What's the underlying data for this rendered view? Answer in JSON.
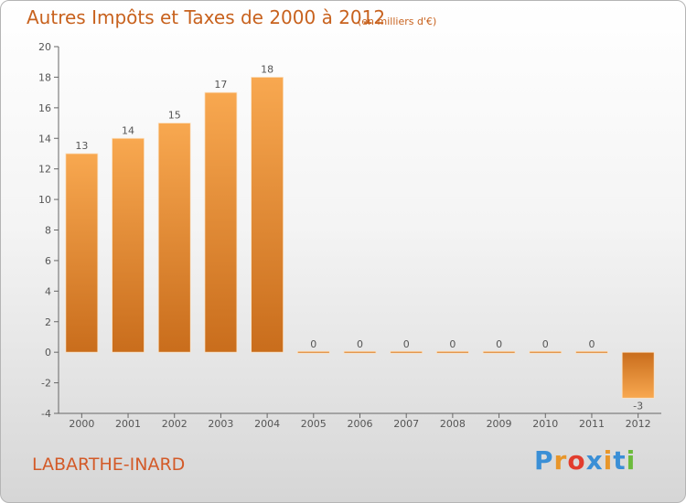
{
  "header": {
    "title": "Autres Impôts et Taxes de 2000 à 2012",
    "subtitle": "(en milliers d'€)"
  },
  "commune": "LABARTHE-INARD",
  "logo": {
    "letters": [
      "P",
      "r",
      "o",
      "x",
      "i",
      "t",
      "i"
    ],
    "colors": [
      "#3a8fd6",
      "#e8962a",
      "#e23d2e",
      "#3a8fd6",
      "#e8962a",
      "#3a8fd6",
      "#6cbb3c"
    ]
  },
  "colors": {
    "bar_light": "#f6a24a",
    "bar_dark": "#cc6f1e",
    "axis": "#555555"
  },
  "chart_data": {
    "type": "bar",
    "title": "Autres Impôts et Taxes de 2000 à 2012",
    "subtitle": "(en milliers d'€)",
    "categories": [
      "2000",
      "2001",
      "2002",
      "2003",
      "2004",
      "2005",
      "2006",
      "2007",
      "2008",
      "2009",
      "2010",
      "2011",
      "2012"
    ],
    "values": [
      13,
      14,
      15,
      17,
      18,
      0,
      0,
      0,
      0,
      0,
      0,
      0,
      -3
    ],
    "ylim": [
      -4,
      20
    ],
    "yticks": [
      -4,
      -2,
      0,
      2,
      4,
      6,
      8,
      10,
      12,
      14,
      16,
      18,
      20
    ],
    "xlabel": "",
    "ylabel": "",
    "grid": false,
    "data_labels": true
  }
}
